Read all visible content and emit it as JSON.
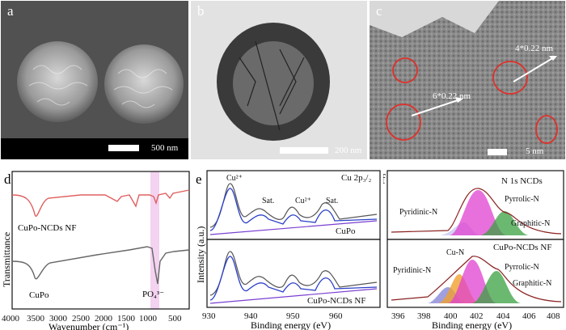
{
  "panels": {
    "a": {
      "label": "a",
      "scale": "500 nm"
    },
    "b": {
      "label": "b",
      "scale": "200 nm"
    },
    "c": {
      "label": "c",
      "scale": "5 nm",
      "anno1": "4*0.22 nm",
      "anno2": "6*0.22 nm"
    },
    "d": {
      "label": "d",
      "ylabel": "Transmittance",
      "xlabel": "Wavenumber (cm⁻¹)",
      "series_top": "CuPo-NCDs NF",
      "series_bottom": "CuPo",
      "peak_label": "PO₄³⁻",
      "xticks": [
        "4000",
        "3500",
        "3000",
        "2500",
        "2000",
        "1500",
        "1000",
        "500"
      ]
    },
    "e": {
      "label": "e",
      "ylabel": "Intensity (a.u.)",
      "xlabel": "Binding energy (eV)",
      "title": "Cu 2p₃/₂",
      "peaks_top": [
        "Cu²⁺",
        "Sat.",
        "Cu²⁺",
        "Sat."
      ],
      "sample_top": "CuPo",
      "sample_bottom": "CuPo-NCDs NF",
      "xticks": [
        "930",
        "940",
        "950",
        "960"
      ]
    },
    "f": {
      "label": "f",
      "xlabel": "Binding energy (eV)",
      "title_top": "N 1s NCDs",
      "title_bottom": "CuPo-NCDs NF",
      "peaks_top": [
        "Pyridinic-N",
        "Pyrrolic-N",
        "Graphitic-N"
      ],
      "peaks_bottom": [
        "Cu-N",
        "Pyridinic-N",
        "Pyrrolic-N",
        "Graphitic-N"
      ],
      "xticks": [
        "396",
        "398",
        "400",
        "402",
        "404",
        "406",
        "408"
      ]
    }
  },
  "colors": {
    "ftir_top": "#e06060",
    "ftir_bottom": "#666666",
    "fit_blue": "#2a3fc8",
    "magenta": "#e040d0",
    "green": "#3aa040",
    "orange": "#f0a030",
    "highlight": "#f3d3f0"
  }
}
